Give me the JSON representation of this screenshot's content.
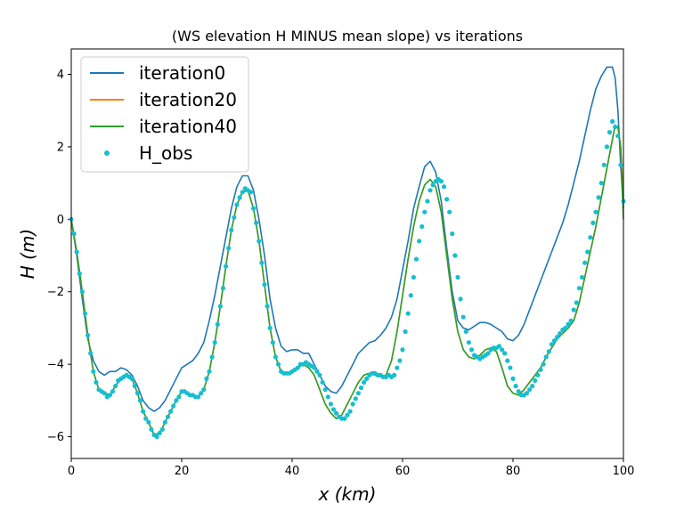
{
  "chart_data": {
    "type": "line",
    "title": "(WS elevation H MINUS mean slope) vs iterations",
    "xlabel": "x (km)",
    "ylabel": "H (m)",
    "xlim": [
      0,
      100
    ],
    "ylim": [
      -6.6,
      4.7
    ],
    "xticks": [
      0,
      20,
      40,
      60,
      80,
      100
    ],
    "yticks": [
      -6,
      -4,
      -2,
      0,
      2,
      4
    ],
    "legend_position": "upper-left",
    "series": [
      {
        "name": "iteration0",
        "color": "#1f77b4",
        "style": "line",
        "x": [
          0,
          1,
          2,
          3,
          4,
          5,
          6,
          7,
          8,
          9,
          10,
          11,
          12,
          13,
          14,
          15,
          16,
          17,
          18,
          19,
          20,
          21,
          22,
          23,
          24,
          25,
          26,
          27,
          28,
          29,
          30,
          31,
          32,
          33,
          34,
          35,
          36,
          37,
          38,
          39,
          40,
          41,
          42,
          43,
          44,
          45,
          46,
          47,
          48,
          49,
          50,
          51,
          52,
          53,
          54,
          55,
          56,
          57,
          58,
          59,
          60,
          61,
          62,
          63,
          64,
          65,
          66,
          67,
          68,
          69,
          70,
          71,
          72,
          73,
          74,
          75,
          76,
          77,
          78,
          79,
          80,
          81,
          82,
          83,
          84,
          85,
          86,
          87,
          88,
          89,
          90,
          91,
          92,
          93,
          94,
          95,
          96,
          97,
          98,
          98.5,
          99,
          99.5,
          100
        ],
        "y": [
          0,
          -1.0,
          -2.2,
          -3.3,
          -3.9,
          -4.2,
          -4.3,
          -4.2,
          -4.2,
          -4.1,
          -4.15,
          -4.3,
          -4.6,
          -5.0,
          -5.2,
          -5.3,
          -5.2,
          -5.0,
          -4.7,
          -4.4,
          -4.1,
          -4.0,
          -3.9,
          -3.7,
          -3.4,
          -2.8,
          -2.1,
          -1.3,
          -0.5,
          0.3,
          0.9,
          1.2,
          1.2,
          0.8,
          0.0,
          -1.0,
          -2.2,
          -3.0,
          -3.5,
          -3.65,
          -3.6,
          -3.6,
          -3.7,
          -3.7,
          -4.0,
          -4.3,
          -4.6,
          -4.75,
          -4.8,
          -4.6,
          -4.3,
          -4.0,
          -3.7,
          -3.55,
          -3.4,
          -3.35,
          -3.2,
          -3.0,
          -2.7,
          -2.2,
          -1.4,
          -0.6,
          0.3,
          0.9,
          1.45,
          1.6,
          1.3,
          0.5,
          -0.8,
          -2.0,
          -2.8,
          -3.0,
          -3.05,
          -2.95,
          -2.85,
          -2.85,
          -2.9,
          -3.0,
          -3.1,
          -3.3,
          -3.35,
          -3.2,
          -2.9,
          -2.5,
          -2.1,
          -1.7,
          -1.3,
          -0.9,
          -0.5,
          -0.1,
          0.4,
          1.0,
          1.6,
          2.3,
          3.0,
          3.6,
          3.95,
          4.2,
          4.2,
          3.9,
          3.0,
          1.5,
          0.3
        ]
      },
      {
        "name": "iteration20",
        "color": "#ff7f0e",
        "style": "line",
        "x": [
          0,
          1,
          2,
          3,
          4,
          5,
          6,
          7,
          8,
          9,
          10,
          11,
          12,
          13,
          14,
          15,
          16,
          17,
          18,
          19,
          20,
          21,
          22,
          23,
          24,
          25,
          26,
          27,
          28,
          29,
          30,
          31,
          32,
          33,
          34,
          35,
          36,
          37,
          38,
          39,
          40,
          41,
          42,
          43,
          44,
          45,
          46,
          47,
          48,
          49,
          50,
          51,
          52,
          53,
          54,
          55,
          56,
          57,
          58,
          59,
          60,
          61,
          62,
          63,
          64,
          65,
          66,
          67,
          68,
          69,
          70,
          71,
          72,
          73,
          74,
          75,
          76,
          77,
          78,
          79,
          80,
          81,
          82,
          83,
          84,
          85,
          86,
          87,
          88,
          89,
          90,
          91,
          92,
          93,
          94,
          95,
          96,
          97,
          98,
          98.5,
          99,
          99.5,
          100
        ],
        "y": [
          0,
          -0.9,
          -2.0,
          -3.2,
          -4.2,
          -4.7,
          -4.8,
          -4.85,
          -4.6,
          -4.4,
          -4.3,
          -4.4,
          -4.8,
          -5.3,
          -5.6,
          -5.95,
          -5.9,
          -5.6,
          -5.3,
          -5.0,
          -4.75,
          -4.8,
          -4.85,
          -4.9,
          -4.7,
          -4.2,
          -3.4,
          -2.4,
          -1.3,
          -0.3,
          0.4,
          0.75,
          0.8,
          0.3,
          -0.6,
          -1.8,
          -3.0,
          -3.8,
          -4.2,
          -4.25,
          -4.2,
          -4.1,
          -4.0,
          -4.1,
          -4.3,
          -4.7,
          -5.1,
          -5.35,
          -5.5,
          -5.4,
          -5.1,
          -4.8,
          -4.5,
          -4.3,
          -4.25,
          -4.3,
          -4.35,
          -4.3,
          -3.9,
          -3.1,
          -2.1,
          -1.1,
          -0.2,
          0.5,
          0.95,
          1.1,
          0.9,
          0.2,
          -1.0,
          -2.2,
          -3.1,
          -3.6,
          -3.8,
          -3.85,
          -3.75,
          -3.6,
          -3.55,
          -3.65,
          -4.1,
          -4.6,
          -4.8,
          -4.85,
          -4.7,
          -4.5,
          -4.3,
          -4.1,
          -3.8,
          -3.55,
          -3.3,
          -3.15,
          -3.0,
          -2.8,
          -2.3,
          -1.6,
          -0.9,
          -0.2,
          0.6,
          1.4,
          2.2,
          2.6,
          2.55,
          2.0,
          0.6
        ]
      },
      {
        "name": "iteration40",
        "color": "#2ca02c",
        "style": "line",
        "x": [
          0,
          1,
          2,
          3,
          4,
          5,
          6,
          7,
          8,
          9,
          10,
          11,
          12,
          13,
          14,
          15,
          16,
          17,
          18,
          19,
          20,
          21,
          22,
          23,
          24,
          25,
          26,
          27,
          28,
          29,
          30,
          31,
          32,
          33,
          34,
          35,
          36,
          37,
          38,
          39,
          40,
          41,
          42,
          43,
          44,
          45,
          46,
          47,
          48,
          49,
          50,
          51,
          52,
          53,
          54,
          55,
          56,
          57,
          58,
          59,
          60,
          61,
          62,
          63,
          64,
          65,
          66,
          67,
          68,
          69,
          70,
          71,
          72,
          73,
          74,
          75,
          76,
          77,
          78,
          79,
          80,
          81,
          82,
          83,
          84,
          85,
          86,
          87,
          88,
          89,
          90,
          91,
          92,
          93,
          94,
          95,
          96,
          97,
          98,
          98.5,
          99,
          99.5,
          100
        ],
        "y": [
          0,
          -0.9,
          -2.0,
          -3.2,
          -4.2,
          -4.7,
          -4.8,
          -4.85,
          -4.6,
          -4.4,
          -4.3,
          -4.4,
          -4.8,
          -5.3,
          -5.6,
          -5.95,
          -5.9,
          -5.6,
          -5.3,
          -5.0,
          -4.75,
          -4.8,
          -4.85,
          -4.9,
          -4.7,
          -4.2,
          -3.4,
          -2.4,
          -1.3,
          -0.3,
          0.4,
          0.75,
          0.8,
          0.3,
          -0.6,
          -1.8,
          -3.0,
          -3.8,
          -4.2,
          -4.25,
          -4.2,
          -4.1,
          -4.0,
          -4.1,
          -4.3,
          -4.7,
          -5.1,
          -5.35,
          -5.5,
          -5.4,
          -5.1,
          -4.8,
          -4.5,
          -4.3,
          -4.25,
          -4.3,
          -4.35,
          -4.3,
          -3.9,
          -3.1,
          -2.1,
          -1.1,
          -0.2,
          0.5,
          0.95,
          1.1,
          0.9,
          0.2,
          -1.0,
          -2.2,
          -3.1,
          -3.6,
          -3.8,
          -3.85,
          -3.75,
          -3.6,
          -3.55,
          -3.65,
          -4.1,
          -4.6,
          -4.8,
          -4.85,
          -4.7,
          -4.5,
          -4.3,
          -4.1,
          -3.8,
          -3.55,
          -3.3,
          -3.15,
          -3.0,
          -2.8,
          -2.3,
          -1.6,
          -0.9,
          -0.2,
          0.6,
          1.4,
          2.2,
          2.6,
          2.55,
          2.0,
          0.0
        ]
      },
      {
        "name": "H_obs",
        "color": "#17becf",
        "style": "markers",
        "x": [
          0,
          0.5,
          1,
          1.5,
          2,
          2.5,
          3,
          3.5,
          4,
          4.5,
          5,
          5.5,
          6,
          6.5,
          7,
          7.5,
          8,
          8.5,
          9,
          9.5,
          10,
          10.5,
          11,
          11.5,
          12,
          12.5,
          13,
          13.5,
          14,
          14.5,
          15,
          15.5,
          16,
          16.5,
          17,
          17.5,
          18,
          18.5,
          19,
          19.5,
          20,
          20.5,
          21,
          21.5,
          22,
          22.5,
          23,
          23.5,
          24,
          24.5,
          25,
          25.5,
          26,
          26.5,
          27,
          27.5,
          28,
          28.5,
          29,
          29.5,
          30,
          30.5,
          31,
          31.5,
          32,
          32.5,
          33,
          33.5,
          34,
          34.5,
          35,
          35.5,
          36,
          36.5,
          37,
          37.5,
          38,
          38.5,
          39,
          39.5,
          40,
          40.5,
          41,
          41.5,
          42,
          42.5,
          43,
          43.5,
          44,
          44.5,
          45,
          45.5,
          46,
          46.5,
          47,
          47.5,
          48,
          48.5,
          49,
          49.5,
          50,
          50.5,
          51,
          51.5,
          52,
          52.5,
          53,
          53.5,
          54,
          54.5,
          55,
          55.5,
          56,
          56.5,
          57,
          57.5,
          58,
          58.5,
          59,
          59.5,
          60,
          60.5,
          61,
          61.5,
          62,
          62.5,
          63,
          63.5,
          64,
          64.5,
          65,
          65.5,
          66,
          66.5,
          67,
          67.5,
          68,
          68.5,
          69,
          69.5,
          70,
          70.5,
          71,
          71.5,
          72,
          72.5,
          73,
          73.5,
          74,
          74.5,
          75,
          75.5,
          76,
          76.5,
          77,
          77.5,
          78,
          78.5,
          79,
          79.5,
          80,
          80.5,
          81,
          81.5,
          82,
          82.5,
          83,
          83.5,
          84,
          84.5,
          85,
          85.5,
          86,
          86.5,
          87,
          87.5,
          88,
          88.5,
          89,
          89.5,
          90,
          90.5,
          91,
          91.5,
          92,
          92.5,
          93,
          93.5,
          94,
          94.5,
          95,
          95.5,
          96,
          96.5,
          97,
          97.5,
          98,
          98.5,
          99,
          99.5,
          100
        ],
        "y": [
          0.0,
          -0.4,
          -0.9,
          -1.5,
          -2.0,
          -2.6,
          -3.2,
          -3.7,
          -4.2,
          -4.5,
          -4.7,
          -4.75,
          -4.8,
          -4.9,
          -4.85,
          -4.75,
          -4.6,
          -4.45,
          -4.4,
          -4.35,
          -4.3,
          -4.35,
          -4.4,
          -4.6,
          -4.8,
          -5.0,
          -5.3,
          -5.5,
          -5.6,
          -5.8,
          -5.95,
          -6.0,
          -5.9,
          -5.8,
          -5.6,
          -5.45,
          -5.3,
          -5.15,
          -5.0,
          -4.9,
          -4.75,
          -4.75,
          -4.8,
          -4.85,
          -4.85,
          -4.9,
          -4.9,
          -4.8,
          -4.7,
          -4.4,
          -4.2,
          -3.8,
          -3.4,
          -2.9,
          -2.4,
          -1.9,
          -1.3,
          -0.8,
          -0.3,
          0.05,
          0.4,
          0.6,
          0.75,
          0.85,
          0.8,
          0.75,
          0.3,
          -0.1,
          -0.6,
          -1.2,
          -1.8,
          -2.4,
          -3.0,
          -3.4,
          -3.8,
          -4.0,
          -4.2,
          -4.25,
          -4.25,
          -4.25,
          -4.2,
          -4.15,
          -4.1,
          -4.0,
          -4.0,
          -3.95,
          -4.0,
          -4.05,
          -4.1,
          -4.2,
          -4.3,
          -4.5,
          -4.7,
          -4.9,
          -5.1,
          -5.25,
          -5.35,
          -5.45,
          -5.5,
          -5.5,
          -5.4,
          -5.3,
          -5.1,
          -4.95,
          -4.8,
          -4.65,
          -4.5,
          -4.4,
          -4.3,
          -4.25,
          -4.25,
          -4.3,
          -4.3,
          -4.35,
          -4.35,
          -4.3,
          -4.35,
          -4.3,
          -4.1,
          -3.9,
          -3.6,
          -3.1,
          -2.6,
          -2.1,
          -1.6,
          -1.1,
          -0.6,
          -0.2,
          0.2,
          0.5,
          0.8,
          0.95,
          1.05,
          1.1,
          1.05,
          0.9,
          0.55,
          0.2,
          -0.4,
          -1.0,
          -1.6,
          -2.2,
          -2.7,
          -3.1,
          -3.4,
          -3.6,
          -3.75,
          -3.8,
          -3.85,
          -3.8,
          -3.75,
          -3.7,
          -3.6,
          -3.55,
          -3.55,
          -3.5,
          -3.6,
          -3.7,
          -3.9,
          -4.1,
          -4.4,
          -4.6,
          -4.75,
          -4.85,
          -4.85,
          -4.8,
          -4.7,
          -4.6,
          -4.45,
          -4.3,
          -4.15,
          -4.0,
          -3.8,
          -3.65,
          -3.45,
          -3.35,
          -3.25,
          -3.15,
          -3.05,
          -3.0,
          -2.9,
          -2.8,
          -2.5,
          -2.3,
          -1.9,
          -1.6,
          -1.2,
          -0.9,
          -0.5,
          -0.1,
          0.2,
          0.6,
          1.0,
          1.5,
          2.0,
          2.4,
          2.7,
          2.55,
          2.3,
          1.5,
          0.5
        ]
      }
    ]
  }
}
